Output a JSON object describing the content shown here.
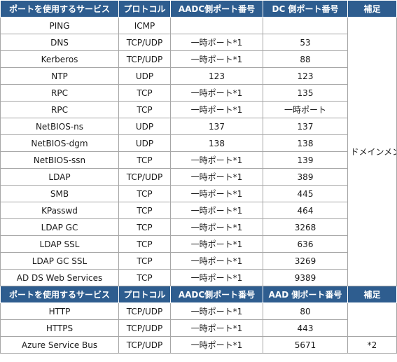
{
  "header1": [
    "ポートを使用するサービス",
    "プロトコル",
    "AADC側ポート番号",
    "DC 側ポート番号",
    "補足"
  ],
  "rows1": [
    {
      "service": "PING",
      "protocol": "ICMP",
      "aadc": "",
      "dc": ""
    },
    {
      "service": "DNS",
      "protocol": "TCP/UDP",
      "aadc": "一時ポート*1",
      "dc": "53"
    },
    {
      "service": "Kerberos",
      "protocol": "TCP/UDP",
      "aadc": "一時ポート*1",
      "dc": "88"
    },
    {
      "service": "NTP",
      "protocol": "UDP",
      "aadc": "123",
      "dc": "123"
    },
    {
      "service": "RPC",
      "protocol": "TCP",
      "aadc": "一時ポート*1",
      "dc": "135"
    },
    {
      "service": "RPC",
      "protocol": "TCP",
      "aadc": "一時ポート*1",
      "dc": "一時ポート"
    },
    {
      "service": "NetBIOS-ns",
      "protocol": "UDP",
      "aadc": "137",
      "dc": "137"
    },
    {
      "service": "NetBIOS-dgm",
      "protocol": "UDP",
      "aadc": "138",
      "dc": "138"
    },
    {
      "service": "NetBIOS-ssn",
      "protocol": "TCP",
      "aadc": "一時ポート*1",
      "dc": "139"
    },
    {
      "service": "LDAP",
      "protocol": "TCP/UDP",
      "aadc": "一時ポート*1",
      "dc": "389"
    },
    {
      "service": "SMB",
      "protocol": "TCP",
      "aadc": "一時ポート*1",
      "dc": "445"
    },
    {
      "service": "KPasswd",
      "protocol": "TCP",
      "aadc": "一時ポート*1",
      "dc": "464"
    },
    {
      "service": "LDAP GC",
      "protocol": "TCP",
      "aadc": "一時ポート*1",
      "dc": "3268"
    },
    {
      "service": "LDAP SSL",
      "protocol": "TCP",
      "aadc": "一時ポート*1",
      "dc": "636"
    },
    {
      "service": "LDAP GC SSL",
      "protocol": "TCP",
      "aadc": "一時ポート*1",
      "dc": "3269"
    },
    {
      "service": "AD DS Web Services",
      "protocol": "TCP",
      "aadc": "一時ポート*1",
      "dc": "9389"
    }
  ],
  "note1": "ドメインメンバーサーバー共通の要件となります。",
  "header2": [
    "ポートを使用するサービス",
    "プロトコル",
    "AADC側ポート番号",
    "AAD 側ポート番号",
    "補足"
  ],
  "rows2": [
    {
      "service": "HTTP",
      "protocol": "TCP/UDP",
      "aadc": "一時ポート*1",
      "dc": "80"
    },
    {
      "service": "HTTPS",
      "protocol": "TCP/UDP",
      "aadc": "一時ポート*1",
      "dc": "443"
    },
    {
      "service": "Azure Service Bus",
      "protocol": "TCP/UDP",
      "aadc": "一時ポート*1",
      "dc": "5671"
    }
  ],
  "note2": "*2"
}
